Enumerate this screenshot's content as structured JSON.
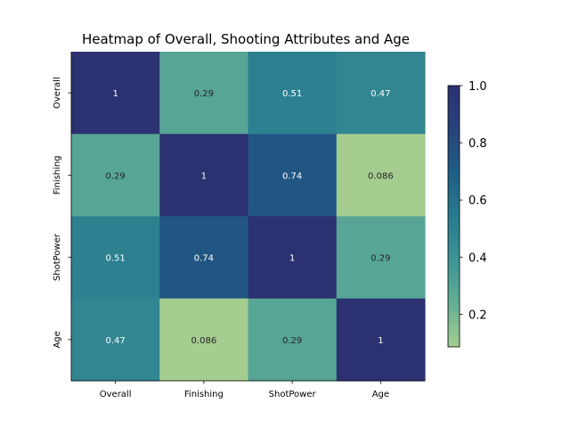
{
  "chart_data": {
    "type": "heatmap",
    "title": "Heatmap of Overall, Shooting Attributes and Age",
    "x_categories": [
      "Overall",
      "Finishing",
      "ShotPower",
      "Age"
    ],
    "y_categories": [
      "Overall",
      "Finishing",
      "ShotPower",
      "Age"
    ],
    "values": [
      [
        1,
        0.29,
        0.51,
        0.47
      ],
      [
        0.29,
        1,
        0.74,
        0.086
      ],
      [
        0.51,
        0.74,
        1,
        0.29
      ],
      [
        0.47,
        0.086,
        0.29,
        1
      ]
    ],
    "annotations": [
      [
        "1",
        "0.29",
        "0.51",
        "0.47"
      ],
      [
        "0.29",
        "1",
        "0.74",
        "0.086"
      ],
      [
        "0.51",
        "0.74",
        "1",
        "0.29"
      ],
      [
        "0.47",
        "0.086",
        "0.29",
        "1"
      ]
    ],
    "colormap": "crest",
    "colormap_stops": [
      "#a5cd90",
      "#62ae94",
      "#3e9497",
      "#277a8e",
      "#1e5f86",
      "#28427b",
      "#2c3172"
    ],
    "vmin": 0.086,
    "vmax": 1.0,
    "colorbar_ticks": [
      "0.2",
      "0.4",
      "0.6",
      "0.8",
      "1.0"
    ],
    "colorbar_tick_values": [
      0.2,
      0.4,
      0.6,
      0.8,
      1.0
    ],
    "colorbar_location": "right"
  }
}
